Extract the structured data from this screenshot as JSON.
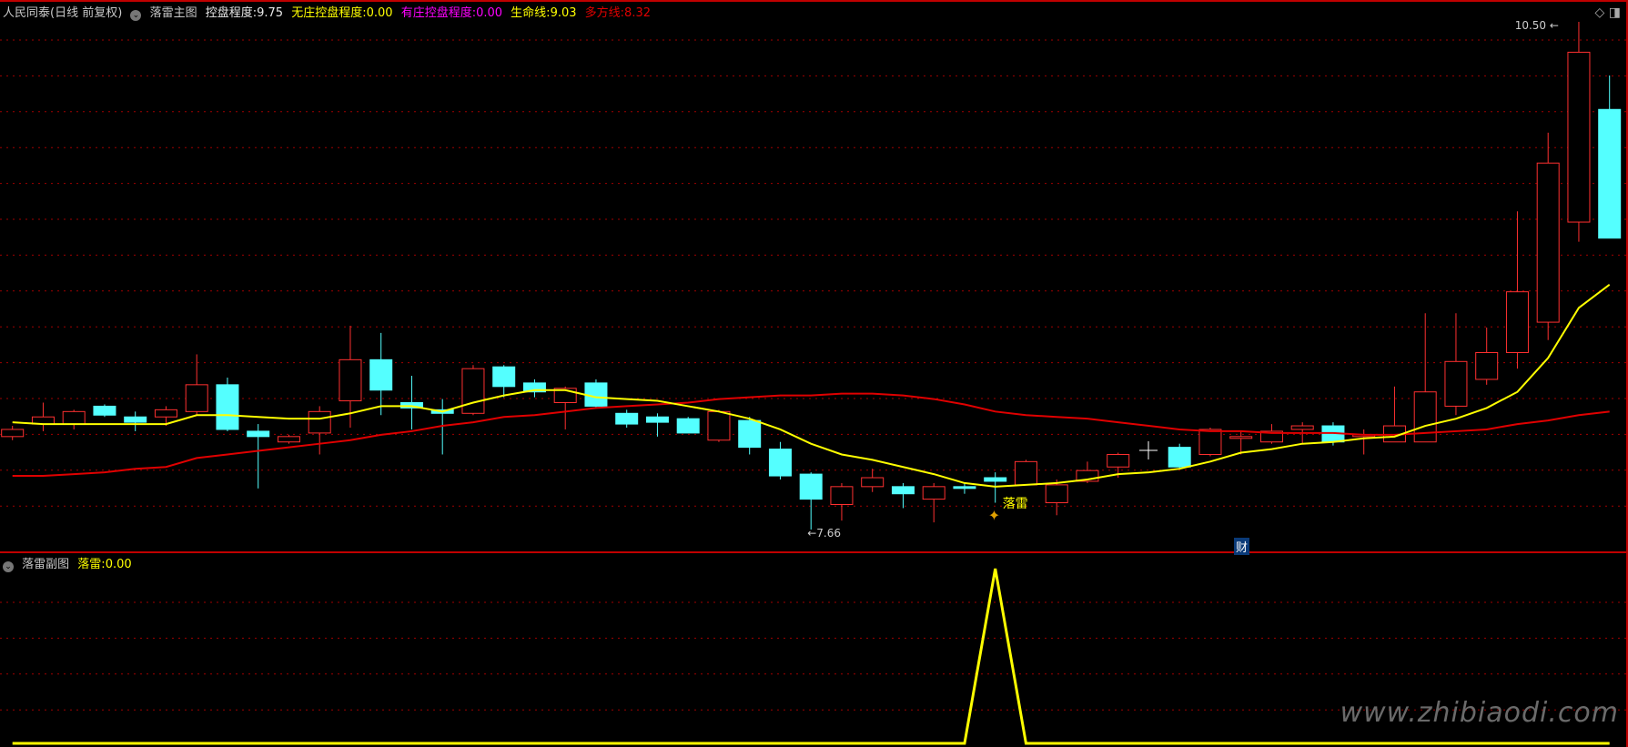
{
  "header": {
    "stock": "人民同泰(日线 前复权)",
    "indicator": "落雷主图",
    "kongpan_label": "控盘程度:",
    "kongpan": "9.75",
    "wuzhuang_label": "无庄控盘程度:",
    "wuzhuang": "0.00",
    "youzhuang_label": "有庄控盘程度:",
    "youzhuang": "0.00",
    "shengming_label": "生命线:",
    "shengming": "9.03",
    "duofang_label": "多方线:",
    "duofang": "8.32"
  },
  "sub_header": {
    "indicator": "落雷副图",
    "luolei_label": "落雷:",
    "luolei": "0.00"
  },
  "annotations": {
    "high": "10.50",
    "low": "7.66",
    "signal": "落雷",
    "finance": "财"
  },
  "watermark": "www.zhibiaodi.com",
  "colors": {
    "up": "#ff3030",
    "down": "#54ffff",
    "life_line": "#ffff00",
    "bull_line": "#e00000",
    "grid": "#a00000",
    "signal": "#ffff00"
  },
  "chart_data": {
    "type": "candlestick",
    "ylim": [
      7.66,
      10.5
    ],
    "candles": [
      [
        8.18,
        8.22,
        8.24,
        8.16
      ],
      [
        8.25,
        8.29,
        8.37,
        8.21
      ],
      [
        8.25,
        8.32,
        8.33,
        8.22
      ],
      [
        8.35,
        8.3,
        8.36,
        8.29
      ],
      [
        8.29,
        8.26,
        8.32,
        8.21
      ],
      [
        8.29,
        8.33,
        8.35,
        8.24
      ],
      [
        8.32,
        8.47,
        8.64,
        8.3
      ],
      [
        8.47,
        8.22,
        8.51,
        8.21
      ],
      [
        8.21,
        8.18,
        8.25,
        7.89
      ],
      [
        8.15,
        8.18,
        8.19,
        8.14
      ],
      [
        8.2,
        8.32,
        8.35,
        8.08
      ],
      [
        8.38,
        8.61,
        8.8,
        8.23
      ],
      [
        8.61,
        8.44,
        8.76,
        8.3
      ],
      [
        8.37,
        8.34,
        8.52,
        8.22
      ],
      [
        8.33,
        8.31,
        8.39,
        8.08
      ],
      [
        8.31,
        8.56,
        8.58,
        8.3
      ],
      [
        8.57,
        8.46,
        8.58,
        8.4
      ],
      [
        8.48,
        8.43,
        8.5,
        8.4
      ],
      [
        8.37,
        8.45,
        8.46,
        8.22
      ],
      [
        8.48,
        8.35,
        8.5,
        8.34
      ],
      [
        8.31,
        8.25,
        8.33,
        8.23
      ],
      [
        8.29,
        8.26,
        8.31,
        8.18
      ],
      [
        8.28,
        8.2,
        8.29,
        8.2
      ],
      [
        8.16,
        8.32,
        8.33,
        8.15
      ],
      [
        8.27,
        8.12,
        8.29,
        8.08
      ],
      [
        8.11,
        7.96,
        8.15,
        7.94
      ],
      [
        7.97,
        7.83,
        7.98,
        7.66
      ],
      [
        7.8,
        7.9,
        7.92,
        7.71
      ],
      [
        7.9,
        7.95,
        8.0,
        7.87
      ],
      [
        7.9,
        7.86,
        7.92,
        7.78
      ],
      [
        7.83,
        7.9,
        7.92,
        7.7
      ],
      [
        7.9,
        7.89,
        7.92,
        7.86
      ],
      [
        7.95,
        7.93,
        7.98,
        7.81
      ],
      [
        7.91,
        8.04,
        8.05,
        7.91
      ],
      [
        7.81,
        7.91,
        7.94,
        7.74
      ],
      [
        7.93,
        7.99,
        8.04,
        7.92
      ],
      [
        8.01,
        8.08,
        8.09,
        7.95
      ],
      null,
      [
        8.12,
        8.01,
        8.14,
        8.0
      ],
      [
        8.08,
        8.22,
        8.23,
        8.07
      ],
      [
        8.17,
        8.18,
        8.21,
        8.08
      ],
      [
        8.15,
        8.21,
        8.25,
        8.14
      ],
      [
        8.22,
        8.24,
        8.26,
        8.14
      ],
      [
        8.24,
        8.15,
        8.26,
        8.13
      ],
      [
        8.18,
        8.19,
        8.22,
        8.08
      ],
      [
        8.15,
        8.24,
        8.46,
        8.15
      ],
      [
        8.15,
        8.43,
        8.87,
        8.15
      ],
      [
        8.35,
        8.6,
        8.87,
        8.3
      ],
      [
        8.5,
        8.65,
        8.79,
        8.47
      ],
      [
        8.65,
        8.99,
        9.44,
        8.56
      ],
      [
        8.82,
        9.71,
        9.88,
        8.72
      ],
      [
        9.38,
        10.33,
        10.5,
        9.27
      ],
      [
        10.01,
        9.29,
        10.2,
        9.29
      ]
    ],
    "life_line": [
      8.26,
      8.25,
      8.25,
      8.25,
      8.25,
      8.25,
      8.3,
      8.3,
      8.29,
      8.28,
      8.28,
      8.31,
      8.35,
      8.35,
      8.32,
      8.37,
      8.41,
      8.44,
      8.44,
      8.4,
      8.39,
      8.38,
      8.35,
      8.32,
      8.28,
      8.22,
      8.14,
      8.08,
      8.05,
      8.01,
      7.97,
      7.92,
      7.9,
      7.91,
      7.92,
      7.94,
      7.97,
      7.98,
      8.0,
      8.04,
      8.09,
      8.11,
      8.14,
      8.15,
      8.17,
      8.18,
      8.24,
      8.28,
      8.34,
      8.43,
      8.62,
      8.9,
      9.03
    ],
    "bull_line": [
      7.96,
      7.96,
      7.97,
      7.98,
      8.0,
      8.01,
      8.06,
      8.08,
      8.1,
      8.12,
      8.14,
      8.16,
      8.19,
      8.21,
      8.24,
      8.26,
      8.29,
      8.3,
      8.32,
      8.34,
      8.35,
      8.36,
      8.37,
      8.39,
      8.4,
      8.41,
      8.41,
      8.42,
      8.42,
      8.41,
      8.39,
      8.36,
      8.32,
      8.3,
      8.29,
      8.28,
      8.26,
      8.24,
      8.22,
      8.21,
      8.21,
      8.2,
      8.2,
      8.2,
      8.19,
      8.19,
      8.2,
      8.21,
      8.22,
      8.25,
      8.27,
      8.3,
      8.32
    ],
    "signal_index": 32,
    "sub_values_nonzero": {
      "32": 1
    }
  }
}
